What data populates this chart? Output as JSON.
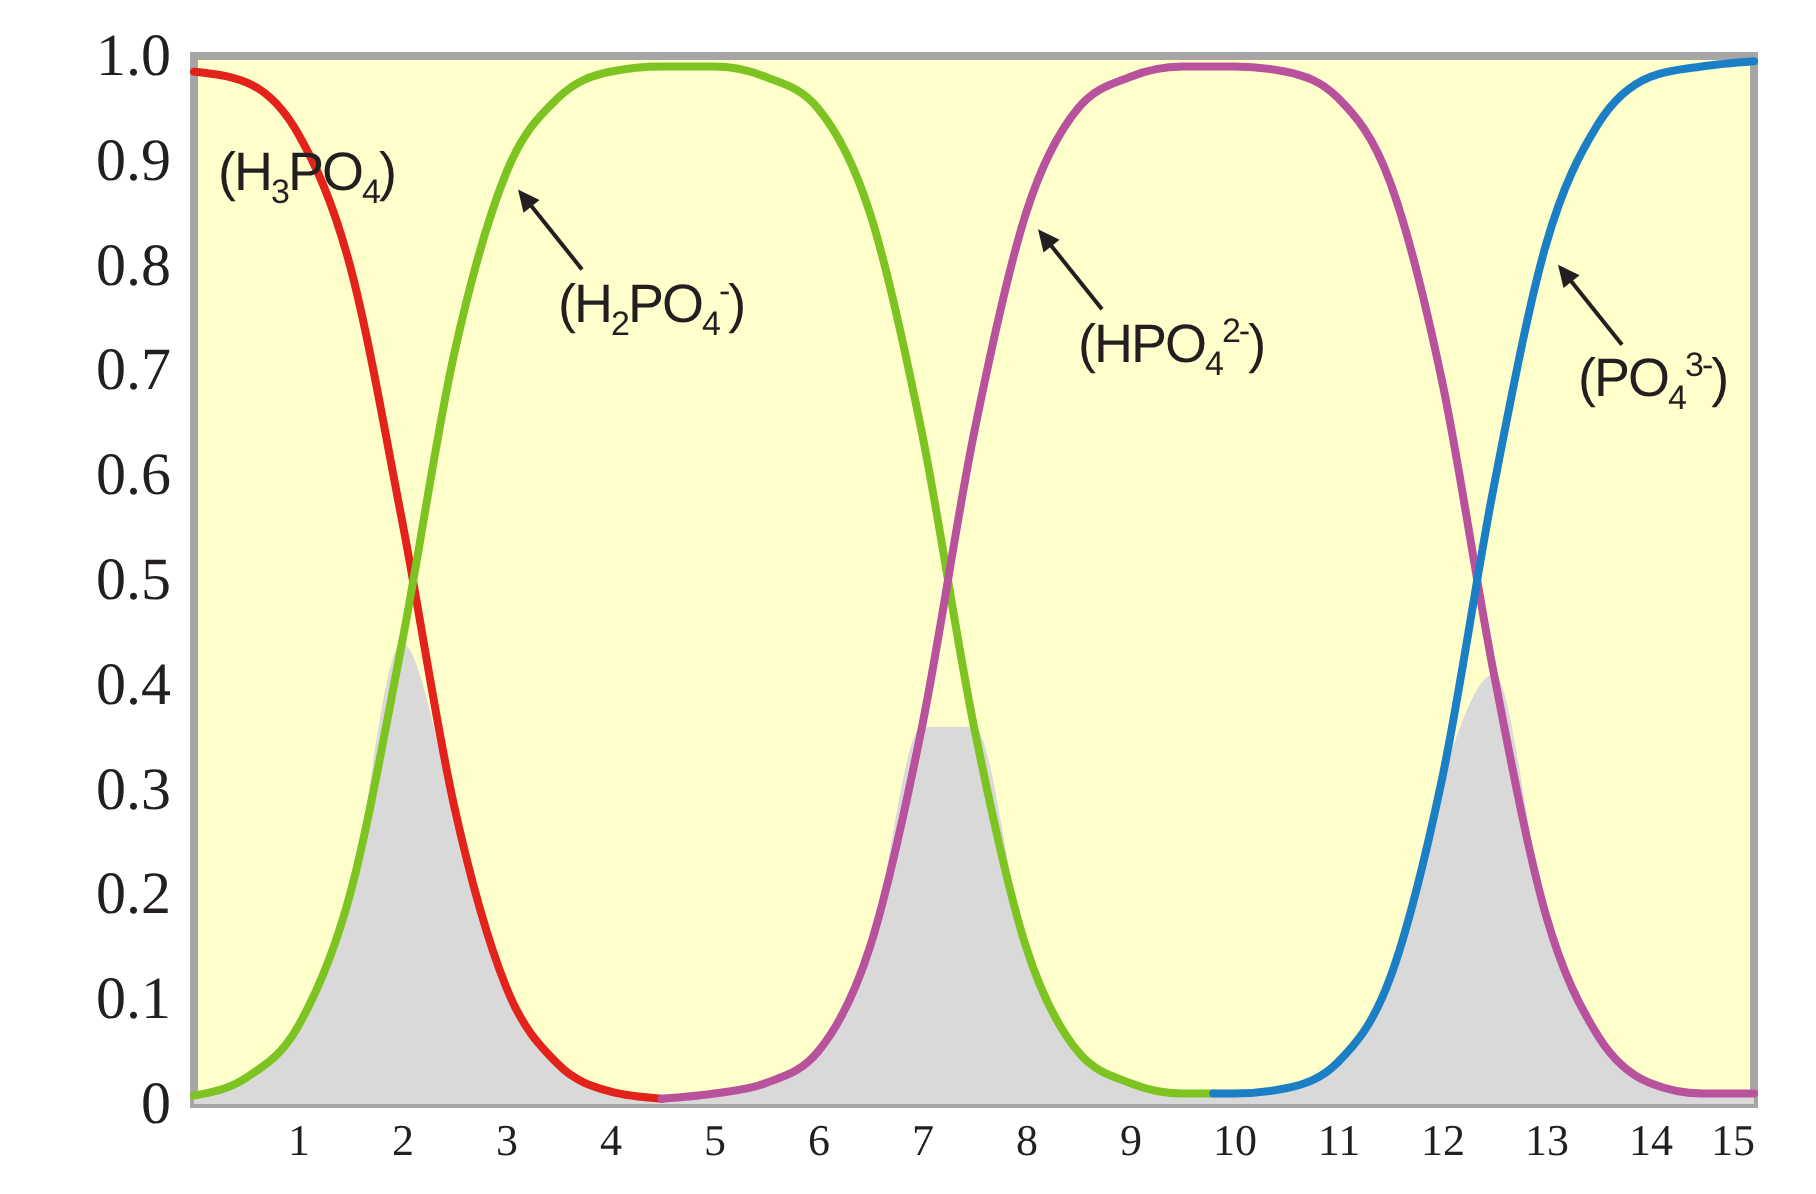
{
  "chart_data": {
    "type": "line",
    "x": [
      0,
      0.5,
      1,
      1.5,
      2,
      2.5,
      3,
      3.5,
      4,
      4.5,
      5,
      5.5,
      6,
      6.5,
      7,
      7.5,
      8,
      8.5,
      9,
      9.5,
      10,
      10.5,
      11,
      11.5,
      12,
      12.5,
      13,
      13.5,
      14,
      14.5,
      15
    ],
    "series": [
      {
        "type": "area",
        "color": "#d9d9d9",
        "values": [
          0.008,
          0.025,
          0.074,
          0.2,
          0.44,
          0.285,
          0.112,
          0.038,
          0.012,
          0.005,
          0.01,
          0.02,
          0.05,
          0.15,
          0.36,
          0.36,
          0.15,
          0.05,
          0.02,
          0.01,
          0.01,
          0.015,
          0.04,
          0.12,
          0.31,
          0.41,
          0.18,
          0.065,
          0.02,
          0.01,
          0.01
        ]
      },
      {
        "name": "(H$_{3}$PO$_{4}$)",
        "color": "#e3231b",
        "x": [
          0,
          0.5,
          1,
          1.5,
          2,
          2.5,
          3,
          3.5,
          4,
          4.5
        ],
        "values": [
          0.985,
          0.975,
          0.926,
          0.8,
          0.557,
          0.285,
          0.112,
          0.038,
          0.012,
          0.005
        ]
      },
      {
        "name": "(H$_{2}$PO$_{4}$$^{-}$)",
        "color": "#7dc422",
        "x": [
          0,
          0.5,
          1,
          1.5,
          2,
          2.5,
          3,
          3.5,
          4,
          4.5,
          5,
          5.5,
          6,
          6.5,
          7,
          7.5,
          8,
          8.5,
          9,
          9.5,
          9.8
        ],
        "values": [
          0.008,
          0.025,
          0.074,
          0.2,
          0.44,
          0.715,
          0.888,
          0.96,
          0.985,
          0.99,
          0.99,
          0.98,
          0.95,
          0.85,
          0.64,
          0.36,
          0.15,
          0.05,
          0.02,
          0.01,
          0.01
        ]
      },
      {
        "name": "(HPO$_{4}$$^{2-}$)",
        "color": "#b9529c",
        "x": [
          4.5,
          5,
          5.5,
          6,
          6.5,
          7,
          7.5,
          8,
          8.5,
          9,
          9.5,
          10,
          10.5,
          11,
          11.5,
          12,
          12.5,
          13,
          13.5,
          14,
          14.5,
          15
        ],
        "values": [
          0.005,
          0.01,
          0.02,
          0.05,
          0.15,
          0.36,
          0.64,
          0.85,
          0.95,
          0.98,
          0.99,
          0.99,
          0.985,
          0.96,
          0.88,
          0.69,
          0.41,
          0.18,
          0.065,
          0.02,
          0.01,
          0.01
        ]
      },
      {
        "name": "(PO$_{4}$$^{3-}$)",
        "color": "#1a7fc4",
        "x": [
          9.8,
          10,
          10.5,
          11,
          11.5,
          12,
          12.5,
          13,
          13.5,
          14,
          14.5,
          15
        ],
        "values": [
          0.01,
          0.01,
          0.015,
          0.04,
          0.12,
          0.31,
          0.59,
          0.82,
          0.935,
          0.98,
          0.99,
          0.995
        ]
      }
    ],
    "xlim": [
      0,
      15
    ],
    "xticks": [
      1,
      2,
      3,
      4,
      5,
      6,
      7,
      8,
      9,
      10,
      11,
      12,
      13,
      14,
      15
    ],
    "ylim": [
      0,
      1
    ],
    "yticks": [
      0,
      0.1,
      0.2,
      0.3,
      0.4,
      0.5,
      0.6,
      0.7,
      0.8,
      0.9,
      {
        "value": 1,
        "label": "1.0"
      }
    ]
  }
}
